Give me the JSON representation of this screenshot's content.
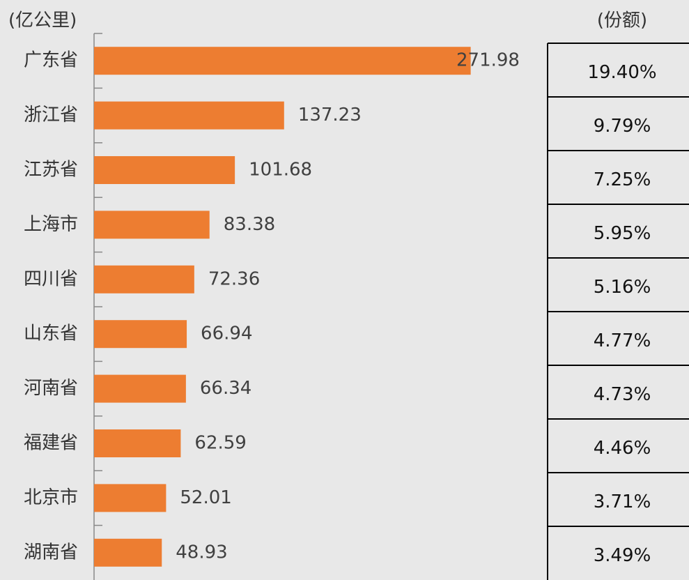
{
  "chart_data": {
    "type": "bar",
    "orientation": "horizontal",
    "x_label": "(亿公里)",
    "categories": [
      "广东省",
      "浙江省",
      "江苏省",
      "上海市",
      "四川省",
      "山东省",
      "河南省",
      "福建省",
      "北京市",
      "湖南省"
    ],
    "values": [
      271.98,
      137.23,
      101.68,
      83.38,
      72.36,
      66.94,
      66.34,
      62.59,
      52.01,
      48.93
    ],
    "color": "#ed7d31",
    "xlim": [
      0,
      327
    ]
  },
  "table": {
    "header": "(份额)",
    "rows": [
      "19.40%",
      "9.79%",
      "7.25%",
      "5.95%",
      "5.16%",
      "4.77%",
      "4.73%",
      "4.46%",
      "3.71%",
      "3.49%"
    ]
  }
}
